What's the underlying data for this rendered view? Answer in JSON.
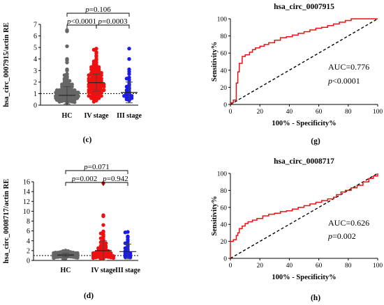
{
  "chart_data": [
    {
      "id": "c",
      "type": "scatter",
      "panel_label": "(c)",
      "ylabel": "hsa_circ_0007915/actin RE",
      "ylim": [
        0,
        7
      ],
      "yticks": [
        0,
        1,
        2,
        3,
        4,
        5,
        6,
        7
      ],
      "categories": [
        "HC",
        "IV stage",
        "III stage"
      ],
      "reference_line": 1,
      "series": [
        {
          "name": "HC",
          "color": "#666666",
          "mean": 0.85,
          "sd": 0.75,
          "values": [
            6.5,
            6.4,
            5.1,
            4.0,
            3.9,
            3.7,
            3.1,
            3.0,
            2.7,
            2.6,
            2.5,
            2.4,
            2.3,
            2.2,
            2.2,
            2.1,
            2.0,
            2.0,
            1.9,
            1.9,
            1.8,
            1.8,
            1.8,
            1.7,
            1.7,
            1.6,
            1.6,
            1.6,
            1.5,
            1.5,
            1.5,
            1.4,
            1.4,
            1.4,
            1.4,
            1.3,
            1.3,
            1.3,
            1.3,
            1.2,
            1.2,
            1.2,
            1.2,
            1.2,
            1.1,
            1.1,
            1.1,
            1.1,
            1.1,
            1.1,
            1.0,
            1.0,
            1.0,
            1.0,
            1.0,
            1.0,
            0.95,
            0.95,
            0.95,
            0.9,
            0.9,
            0.9,
            0.9,
            0.9,
            0.85,
            0.85,
            0.85,
            0.8,
            0.8,
            0.8,
            0.8,
            0.8,
            0.75,
            0.75,
            0.75,
            0.7,
            0.7,
            0.7,
            0.7,
            0.65,
            0.65,
            0.65,
            0.6,
            0.6,
            0.6,
            0.55,
            0.55,
            0.55,
            0.5,
            0.5,
            0.5,
            0.45,
            0.45,
            0.4,
            0.4,
            0.35,
            0.35,
            0.3,
            0.3,
            0.25,
            0.2
          ]
        },
        {
          "name": "IV stage",
          "color": "#ee1111",
          "mean": 1.95,
          "sd": 0.75,
          "values": [
            4.9,
            4.8,
            4.6,
            4.5,
            4.3,
            4.2,
            4.0,
            3.9,
            3.8,
            3.7,
            3.6,
            3.5,
            3.5,
            3.4,
            3.4,
            3.3,
            3.3,
            3.2,
            3.2,
            3.1,
            3.1,
            3.0,
            3.0,
            3.0,
            2.9,
            2.9,
            2.8,
            2.8,
            2.8,
            2.7,
            2.7,
            2.7,
            2.6,
            2.6,
            2.6,
            2.5,
            2.5,
            2.5,
            2.4,
            2.4,
            2.4,
            2.3,
            2.3,
            2.3,
            2.2,
            2.2,
            2.2,
            2.1,
            2.1,
            2.1,
            2.0,
            2.0,
            2.0,
            2.0,
            1.9,
            1.9,
            1.9,
            1.8,
            1.8,
            1.8,
            1.8,
            1.7,
            1.7,
            1.7,
            1.6,
            1.6,
            1.6,
            1.6,
            1.5,
            1.5,
            1.5,
            1.4,
            1.4,
            1.4,
            1.4,
            1.3,
            1.3,
            1.3,
            1.2,
            1.2,
            1.2,
            1.1,
            1.1,
            1.1,
            1.0,
            1.0,
            1.0,
            0.9,
            0.9,
            0.9,
            0.8,
            0.8,
            0.8,
            0.7,
            0.7,
            0.6,
            0.6,
            0.5,
            0.5,
            0.4,
            0.3
          ]
        },
        {
          "name": "III stage",
          "color": "#1a1aee",
          "mean": 1.1,
          "sd": 0.9,
          "values": [
            4.9,
            4.0,
            3.1,
            2.9,
            2.7,
            2.4,
            2.3,
            2.2,
            2.0,
            1.8,
            1.7,
            1.6,
            1.5,
            1.4,
            1.3,
            1.2,
            1.1,
            1.0,
            0.9,
            0.9,
            0.8,
            0.8,
            0.7,
            0.6,
            0.6,
            0.5,
            0.5,
            0.4
          ]
        }
      ],
      "comparisons": [
        {
          "from": "HC",
          "to": "III stage",
          "text": "p=0.106"
        },
        {
          "from": "HC",
          "to": "IV stage",
          "text": "p<0.0001"
        },
        {
          "from": "IV stage",
          "to": "III stage",
          "text": "p=0.0003"
        }
      ]
    },
    {
      "id": "g",
      "type": "line",
      "panel_label": "(g)",
      "title": "hsa_circ_0007915",
      "xlabel": "100% - Specificity%",
      "ylabel": "Sensitivity%",
      "xlim": [
        0,
        100
      ],
      "ylim": [
        0,
        100
      ],
      "ticks": [
        0,
        20,
        40,
        60,
        80,
        100
      ],
      "auc_text": "AUC=0.776",
      "p_text": "p<0.0001",
      "roc_color": "#ee1111",
      "roc": [
        [
          0,
          0
        ],
        [
          0,
          2
        ],
        [
          2,
          2
        ],
        [
          2,
          5
        ],
        [
          4,
          5
        ],
        [
          4,
          25
        ],
        [
          5,
          25
        ],
        [
          5,
          38
        ],
        [
          6,
          38
        ],
        [
          6,
          48
        ],
        [
          8,
          48
        ],
        [
          8,
          56
        ],
        [
          10,
          56
        ],
        [
          10,
          58
        ],
        [
          13,
          58
        ],
        [
          13,
          61
        ],
        [
          15,
          61
        ],
        [
          15,
          64
        ],
        [
          17,
          64
        ],
        [
          17,
          66
        ],
        [
          20,
          66
        ],
        [
          20,
          68
        ],
        [
          23,
          68
        ],
        [
          23,
          70
        ],
        [
          26,
          70
        ],
        [
          26,
          72
        ],
        [
          30,
          72
        ],
        [
          30,
          75
        ],
        [
          34,
          75
        ],
        [
          34,
          78
        ],
        [
          38,
          78
        ],
        [
          38,
          79
        ],
        [
          42,
          79
        ],
        [
          42,
          81
        ],
        [
          46,
          81
        ],
        [
          46,
          83
        ],
        [
          50,
          83
        ],
        [
          50,
          85
        ],
        [
          54,
          85
        ],
        [
          54,
          87
        ],
        [
          58,
          87
        ],
        [
          58,
          89
        ],
        [
          62,
          89
        ],
        [
          62,
          90
        ],
        [
          66,
          90
        ],
        [
          66,
          92
        ],
        [
          70,
          92
        ],
        [
          70,
          94
        ],
        [
          74,
          94
        ],
        [
          74,
          96
        ],
        [
          78,
          96
        ],
        [
          78,
          98
        ],
        [
          82,
          98
        ],
        [
          82,
          100
        ],
        [
          100,
          100
        ]
      ]
    },
    {
      "id": "d",
      "type": "scatter",
      "panel_label": "(d)",
      "ylabel": "hsa_circ_0008717/actin RE",
      "ylim": [
        0,
        16
      ],
      "yticks": [
        0,
        2,
        4,
        6,
        8,
        10,
        12,
        14,
        16
      ],
      "categories": [
        "HC",
        "IV stage",
        "III stage"
      ],
      "reference_line": 1,
      "series": [
        {
          "name": "HC",
          "color": "#666666",
          "mean": 1.1,
          "sd": 0.35,
          "values": [
            2.0,
            1.9,
            1.9,
            1.8,
            1.8,
            1.7,
            1.7,
            1.7,
            1.6,
            1.6,
            1.6,
            1.5,
            1.5,
            1.5,
            1.5,
            1.4,
            1.4,
            1.4,
            1.4,
            1.3,
            1.3,
            1.3,
            1.3,
            1.3,
            1.2,
            1.2,
            1.2,
            1.2,
            1.2,
            1.2,
            1.1,
            1.1,
            1.1,
            1.1,
            1.1,
            1.1,
            1.0,
            1.0,
            1.0,
            1.0,
            1.0,
            1.0,
            0.95,
            0.95,
            0.95,
            0.9,
            0.9,
            0.9,
            0.9,
            0.85,
            0.85,
            0.85,
            0.8,
            0.8,
            0.8,
            0.75,
            0.75,
            0.7,
            0.7,
            0.65,
            0.6,
            0.6,
            0.55,
            0.5,
            0.45,
            0.4
          ]
        },
        {
          "name": "IV stage",
          "color": "#ee1111",
          "mean": 2.0,
          "sd": 2.0,
          "values": [
            15.7,
            9.2,
            9.0,
            7.2,
            5.9,
            5.8,
            5.5,
            5.3,
            5.0,
            4.8,
            4.5,
            4.3,
            4.0,
            3.8,
            3.7,
            3.5,
            3.3,
            3.1,
            3.0,
            2.9,
            2.8,
            2.7,
            2.6,
            2.5,
            2.4,
            2.3,
            2.2,
            2.1,
            2.0,
            2.0,
            1.9,
            1.9,
            1.8,
            1.8,
            1.7,
            1.7,
            1.6,
            1.6,
            1.5,
            1.5,
            1.4,
            1.4,
            1.3,
            1.3,
            1.3,
            1.2,
            1.2,
            1.2,
            1.1,
            1.1,
            1.1,
            1.0,
            1.0,
            1.0,
            0.9,
            0.9,
            0.9,
            0.8,
            0.8,
            0.8,
            0.7,
            0.7,
            0.6,
            0.6,
            0.5,
            0.5,
            0.4,
            0.3
          ]
        },
        {
          "name": "III stage",
          "color": "#1a1aee",
          "mean": 1.8,
          "sd": 1.5,
          "values": [
            5.8,
            5.7,
            4.9,
            4.7,
            4.2,
            3.8,
            3.5,
            3.3,
            3.0,
            2.8,
            2.5,
            2.3,
            2.0,
            1.9,
            1.7,
            1.6,
            1.5,
            1.4,
            1.3,
            1.2,
            1.1,
            1.0,
            0.9,
            0.8,
            0.7,
            0.6
          ]
        }
      ],
      "comparisons": [
        {
          "from": "HC",
          "to": "III stage",
          "text": "p=0.071"
        },
        {
          "from": "HC",
          "to": "IV stage",
          "text": "p=0.002"
        },
        {
          "from": "IV stage",
          "to": "III stage",
          "text": "p=0.942"
        }
      ]
    },
    {
      "id": "h",
      "type": "line",
      "panel_label": "(h)",
      "title": "hsa_circ_0008717",
      "xlabel": "100% - Specificity%",
      "ylabel": "Sensitivity%",
      "xlim": [
        0,
        100
      ],
      "ylim": [
        0,
        100
      ],
      "ticks": [
        0,
        20,
        40,
        60,
        80,
        100
      ],
      "auc_text": "AUC=0.626",
      "p_text": "p=0.002",
      "roc_color": "#ee1111",
      "roc": [
        [
          0,
          0
        ],
        [
          0,
          20
        ],
        [
          2,
          20
        ],
        [
          2,
          22
        ],
        [
          4,
          22
        ],
        [
          4,
          27
        ],
        [
          5,
          27
        ],
        [
          5,
          30
        ],
        [
          6,
          30
        ],
        [
          6,
          35
        ],
        [
          8,
          35
        ],
        [
          8,
          38
        ],
        [
          10,
          38
        ],
        [
          10,
          41
        ],
        [
          12,
          41
        ],
        [
          12,
          43
        ],
        [
          15,
          43
        ],
        [
          15,
          45
        ],
        [
          18,
          45
        ],
        [
          18,
          47
        ],
        [
          22,
          47
        ],
        [
          22,
          50
        ],
        [
          26,
          50
        ],
        [
          26,
          52
        ],
        [
          30,
          52
        ],
        [
          30,
          53
        ],
        [
          34,
          53
        ],
        [
          34,
          55
        ],
        [
          38,
          55
        ],
        [
          38,
          56
        ],
        [
          42,
          56
        ],
        [
          42,
          58
        ],
        [
          46,
          58
        ],
        [
          46,
          60
        ],
        [
          50,
          60
        ],
        [
          50,
          62
        ],
        [
          54,
          62
        ],
        [
          54,
          64
        ],
        [
          58,
          64
        ],
        [
          58,
          66
        ],
        [
          62,
          66
        ],
        [
          62,
          68
        ],
        [
          66,
          68
        ],
        [
          66,
          70
        ],
        [
          70,
          70
        ],
        [
          70,
          72
        ],
        [
          72,
          72
        ],
        [
          72,
          75
        ],
        [
          75,
          75
        ],
        [
          75,
          78
        ],
        [
          78,
          78
        ],
        [
          78,
          80
        ],
        [
          82,
          80
        ],
        [
          82,
          83
        ],
        [
          86,
          83
        ],
        [
          86,
          86
        ],
        [
          90,
          86
        ],
        [
          90,
          90
        ],
        [
          94,
          90
        ],
        [
          94,
          94
        ],
        [
          97,
          94
        ],
        [
          97,
          97
        ],
        [
          100,
          97
        ],
        [
          100,
          100
        ]
      ]
    }
  ]
}
